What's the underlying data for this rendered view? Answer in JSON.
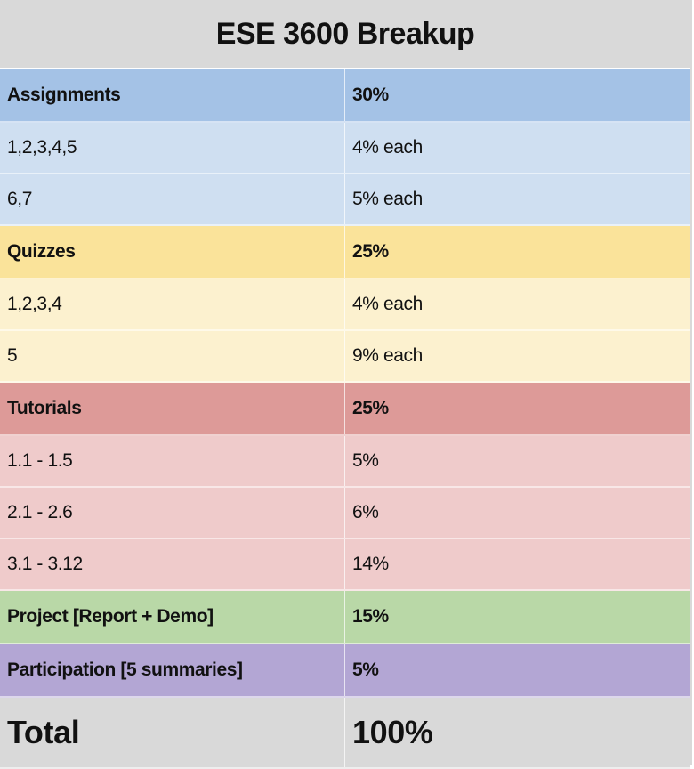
{
  "title": "ESE 3600 Breakup",
  "rows": [
    {
      "label": "Assignments",
      "value": "30%",
      "style": "h-blue",
      "bold": true
    },
    {
      "label": "1,2,3,4,5",
      "value": "4% each",
      "style": "l-blue",
      "bold": false
    },
    {
      "label": "6,7",
      "value": "5% each",
      "style": "l-blue",
      "bold": false
    },
    {
      "label": "Quizzes",
      "value": "25%",
      "style": "h-yellow",
      "bold": true
    },
    {
      "label": "1,2,3,4",
      "value": "4% each",
      "style": "l-yellow",
      "bold": false
    },
    {
      "label": "5",
      "value": "9% each",
      "style": "l-yellow",
      "bold": false
    },
    {
      "label": "Tutorials",
      "value": "25%",
      "style": "h-red",
      "bold": true
    },
    {
      "label": "1.1 - 1.5",
      "value": "5%",
      "style": "l-red",
      "bold": false
    },
    {
      "label": "2.1 - 2.6",
      "value": "6%",
      "style": "l-red",
      "bold": false
    },
    {
      "label": "3.1 - 3.12",
      "value": "14%",
      "style": "l-red",
      "bold": false
    },
    {
      "label": "Project [Report + Demo]",
      "value": "15%",
      "style": "h-green",
      "bold": true
    },
    {
      "label": "Participation [5 summaries]",
      "value": "5%",
      "style": "h-purple",
      "bold": true
    }
  ],
  "total": {
    "label": "Total",
    "value": "100%"
  },
  "colors": {
    "title_bg": "#d9d9d9",
    "assignments_header": "#a4c2e6",
    "assignments_rows": "#cfdff1",
    "quizzes_header": "#fae39a",
    "quizzes_rows": "#fcf1cf",
    "tutorials_header": "#dd9a98",
    "tutorials_rows": "#efcbcb",
    "project": "#b9d8a7",
    "participation": "#b3a6d4",
    "total_bg": "#d9d9d9"
  }
}
